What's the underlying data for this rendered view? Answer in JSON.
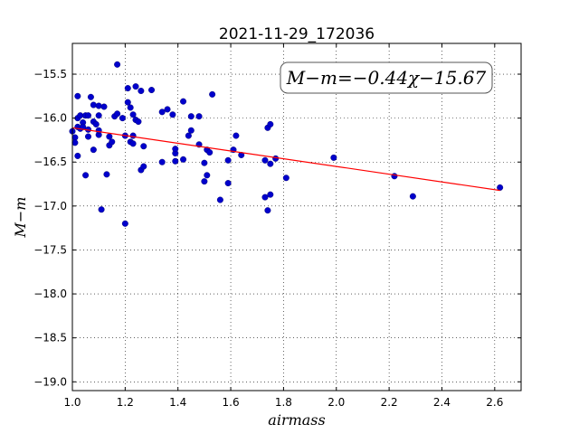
{
  "chart_data": {
    "type": "scatter",
    "title": "2021-11-29_172036",
    "xlabel": "airmass",
    "ylabel": "M−m",
    "xlim": [
      1.0,
      2.7
    ],
    "ylim": [
      -19.1,
      -15.15
    ],
    "xticks": [
      "1.0",
      "1.2",
      "1.4",
      "1.6",
      "1.8",
      "2.0",
      "2.2",
      "2.4",
      "2.6"
    ],
    "xtick_values": [
      1.0,
      1.2,
      1.4,
      1.6,
      1.8,
      2.0,
      2.2,
      2.4,
      2.6
    ],
    "yticks": [
      "−15.5",
      "−16.0",
      "−16.5",
      "−17.0",
      "−17.5",
      "−18.0",
      "−18.5",
      "−19.0"
    ],
    "ytick_values": [
      -15.5,
      -16.0,
      -16.5,
      -17.0,
      -17.5,
      -18.0,
      -18.5,
      -19.0
    ],
    "grid": true,
    "annotation": "M−m=−0.44χ−15.67",
    "fit": {
      "slope": -0.44,
      "intercept": -15.67,
      "x_range": [
        1.0,
        2.62
      ],
      "color": "#ff0000"
    },
    "marker_color": "#0000cc",
    "points": [
      [
        1.0,
        -16.15
      ],
      [
        1.01,
        -16.22
      ],
      [
        1.01,
        -16.28
      ],
      [
        1.02,
        -16.0
      ],
      [
        1.02,
        -16.1
      ],
      [
        1.02,
        -16.43
      ],
      [
        1.02,
        -15.75
      ],
      [
        1.03,
        -15.97
      ],
      [
        1.03,
        -16.12
      ],
      [
        1.04,
        -16.05
      ],
      [
        1.04,
        -16.1
      ],
      [
        1.05,
        -15.97
      ],
      [
        1.05,
        -16.65
      ],
      [
        1.06,
        -16.13
      ],
      [
        1.06,
        -15.97
      ],
      [
        1.06,
        -16.21
      ],
      [
        1.07,
        -15.76
      ],
      [
        1.08,
        -15.85
      ],
      [
        1.08,
        -16.36
      ],
      [
        1.08,
        -16.04
      ],
      [
        1.09,
        -16.07
      ],
      [
        1.1,
        -15.97
      ],
      [
        1.1,
        -16.19
      ],
      [
        1.1,
        -15.86
      ],
      [
        1.1,
        -16.14
      ],
      [
        1.11,
        -17.04
      ],
      [
        1.12,
        -15.87
      ],
      [
        1.13,
        -16.64
      ],
      [
        1.14,
        -16.31
      ],
      [
        1.14,
        -16.21
      ],
      [
        1.15,
        -16.27
      ],
      [
        1.16,
        -15.98
      ],
      [
        1.17,
        -15.39
      ],
      [
        1.17,
        -15.95
      ],
      [
        1.19,
        -16.0
      ],
      [
        1.2,
        -17.2
      ],
      [
        1.2,
        -16.2
      ],
      [
        1.21,
        -15.66
      ],
      [
        1.21,
        -15.82
      ],
      [
        1.22,
        -15.88
      ],
      [
        1.22,
        -16.27
      ],
      [
        1.23,
        -15.96
      ],
      [
        1.23,
        -16.2
      ],
      [
        1.23,
        -16.29
      ],
      [
        1.24,
        -16.02
      ],
      [
        1.24,
        -15.64
      ],
      [
        1.25,
        -16.04
      ],
      [
        1.26,
        -16.59
      ],
      [
        1.26,
        -15.69
      ],
      [
        1.27,
        -16.32
      ],
      [
        1.27,
        -16.55
      ],
      [
        1.3,
        -15.68
      ],
      [
        1.34,
        -15.93
      ],
      [
        1.34,
        -16.5
      ],
      [
        1.36,
        -15.9
      ],
      [
        1.38,
        -15.96
      ],
      [
        1.39,
        -16.49
      ],
      [
        1.39,
        -16.4
      ],
      [
        1.39,
        -16.35
      ],
      [
        1.42,
        -15.81
      ],
      [
        1.42,
        -16.47
      ],
      [
        1.44,
        -16.2
      ],
      [
        1.45,
        -15.98
      ],
      [
        1.45,
        -16.14
      ],
      [
        1.48,
        -15.98
      ],
      [
        1.48,
        -16.3
      ],
      [
        1.5,
        -16.72
      ],
      [
        1.5,
        -16.51
      ],
      [
        1.51,
        -16.36
      ],
      [
        1.51,
        -16.65
      ],
      [
        1.52,
        -16.39
      ],
      [
        1.53,
        -15.73
      ],
      [
        1.56,
        -16.93
      ],
      [
        1.59,
        -16.48
      ],
      [
        1.59,
        -16.74
      ],
      [
        1.61,
        -16.36
      ],
      [
        1.62,
        -16.2
      ],
      [
        1.64,
        -16.42
      ],
      [
        1.73,
        -16.9
      ],
      [
        1.73,
        -16.48
      ],
      [
        1.74,
        -17.05
      ],
      [
        1.74,
        -16.11
      ],
      [
        1.75,
        -16.07
      ],
      [
        1.75,
        -16.87
      ],
      [
        1.75,
        -16.52
      ],
      [
        1.77,
        -16.46
      ],
      [
        1.81,
        -16.68
      ],
      [
        1.99,
        -16.45
      ],
      [
        2.22,
        -16.66
      ],
      [
        2.29,
        -16.89
      ],
      [
        2.62,
        -16.79
      ]
    ]
  }
}
